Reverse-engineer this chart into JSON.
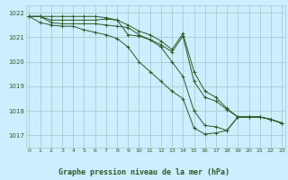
{
  "title": "Graphe pression niveau de la mer (hPa)",
  "background_color": "#cceeff",
  "grid_color": "#aacccc",
  "line_color": "#2d5a27",
  "x_ticks": [
    0,
    1,
    2,
    3,
    4,
    5,
    6,
    7,
    8,
    9,
    10,
    11,
    12,
    13,
    14,
    15,
    16,
    17,
    18,
    19,
    20,
    21,
    22,
    23
  ],
  "ylim": [
    1016.5,
    1022.3
  ],
  "xlim": [
    -0.3,
    23.3
  ],
  "yticks": [
    1017,
    1018,
    1019,
    1020,
    1021,
    1022
  ],
  "series": [
    [
      1021.85,
      1021.85,
      1021.85,
      1021.85,
      1021.85,
      1021.85,
      1021.85,
      1021.8,
      1021.7,
      1021.1,
      1021.05,
      1020.9,
      1020.7,
      1020.4,
      1021.05,
      1019.2,
      1018.55,
      1018.4,
      1018.05,
      1017.75,
      1017.75,
      1017.75,
      1017.65,
      1017.5
    ],
    [
      1021.85,
      1021.85,
      1021.7,
      1021.7,
      1021.7,
      1021.7,
      1021.7,
      1021.75,
      1021.7,
      1021.5,
      1021.25,
      1021.1,
      1020.85,
      1020.5,
      1021.15,
      1019.6,
      1018.8,
      1018.55,
      1018.1,
      1017.75,
      1017.75,
      1017.75,
      1017.65,
      1017.5
    ],
    [
      1021.85,
      1021.85,
      1021.6,
      1021.55,
      1021.55,
      1021.55,
      1021.55,
      1021.5,
      1021.45,
      1021.4,
      1021.1,
      1020.9,
      1020.6,
      1020.0,
      1019.4,
      1018.0,
      1017.4,
      1017.35,
      1017.2,
      1017.75,
      1017.75,
      1017.75,
      1017.65,
      1017.5
    ],
    [
      1021.85,
      1021.6,
      1021.5,
      1021.45,
      1021.45,
      1021.3,
      1021.2,
      1021.1,
      1020.95,
      1020.6,
      1020.0,
      1019.6,
      1019.2,
      1018.8,
      1018.5,
      1017.3,
      1017.05,
      1017.1,
      1017.2,
      1017.75,
      1017.75,
      1017.75,
      1017.65,
      1017.5
    ]
  ]
}
